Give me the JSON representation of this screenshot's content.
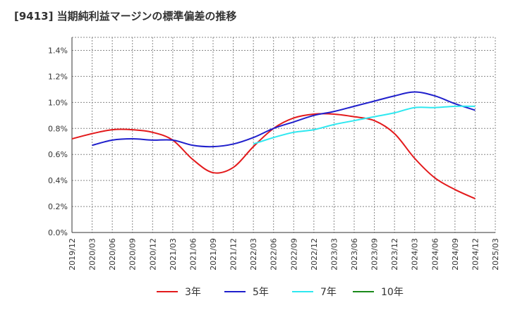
{
  "chart_data": {
    "type": "line",
    "title": "[9413]  当期純利益マージンの標準偏差の推移",
    "x": [
      "2019/12",
      "2020/03",
      "2020/06",
      "2020/09",
      "2020/12",
      "2021/03",
      "2021/06",
      "2021/09",
      "2021/12",
      "2022/03",
      "2022/06",
      "2022/09",
      "2022/12",
      "2023/03",
      "2023/06",
      "2023/09",
      "2023/12",
      "2024/03",
      "2024/06",
      "2024/09",
      "2024/12",
      "2025/03"
    ],
    "y_ticks": [
      "0.0%",
      "0.2%",
      "0.4%",
      "0.6%",
      "0.8%",
      "1.0%",
      "1.2%",
      "1.4%"
    ],
    "ylim": [
      0.0,
      1.5
    ],
    "grid": true,
    "legend_position": "bottom",
    "series": [
      {
        "name": "3年",
        "color": "#e31a1c",
        "values": [
          0.72,
          0.76,
          0.79,
          0.79,
          0.77,
          0.71,
          0.56,
          0.46,
          0.5,
          0.66,
          0.8,
          0.88,
          0.91,
          0.91,
          0.89,
          0.86,
          0.76,
          0.57,
          0.42,
          0.33,
          0.26,
          null
        ]
      },
      {
        "name": "5年",
        "color": "#1f1fcc",
        "values": [
          null,
          0.67,
          0.71,
          0.72,
          0.71,
          0.71,
          0.67,
          0.66,
          0.68,
          0.73,
          0.8,
          0.85,
          0.9,
          0.93,
          0.97,
          1.01,
          1.05,
          1.08,
          1.05,
          0.99,
          0.94,
          null
        ]
      },
      {
        "name": "7年",
        "color": "#2ee8f0",
        "values": [
          null,
          null,
          null,
          null,
          null,
          null,
          null,
          null,
          null,
          0.68,
          0.73,
          0.77,
          0.79,
          0.83,
          0.86,
          0.89,
          0.92,
          0.96,
          0.96,
          0.97,
          0.97,
          null
        ]
      },
      {
        "name": "10年",
        "color": "#1a8a1a",
        "values": [
          null,
          null,
          null,
          null,
          null,
          null,
          null,
          null,
          null,
          null,
          null,
          null,
          null,
          null,
          null,
          null,
          null,
          null,
          null,
          null,
          null,
          null
        ]
      }
    ]
  }
}
